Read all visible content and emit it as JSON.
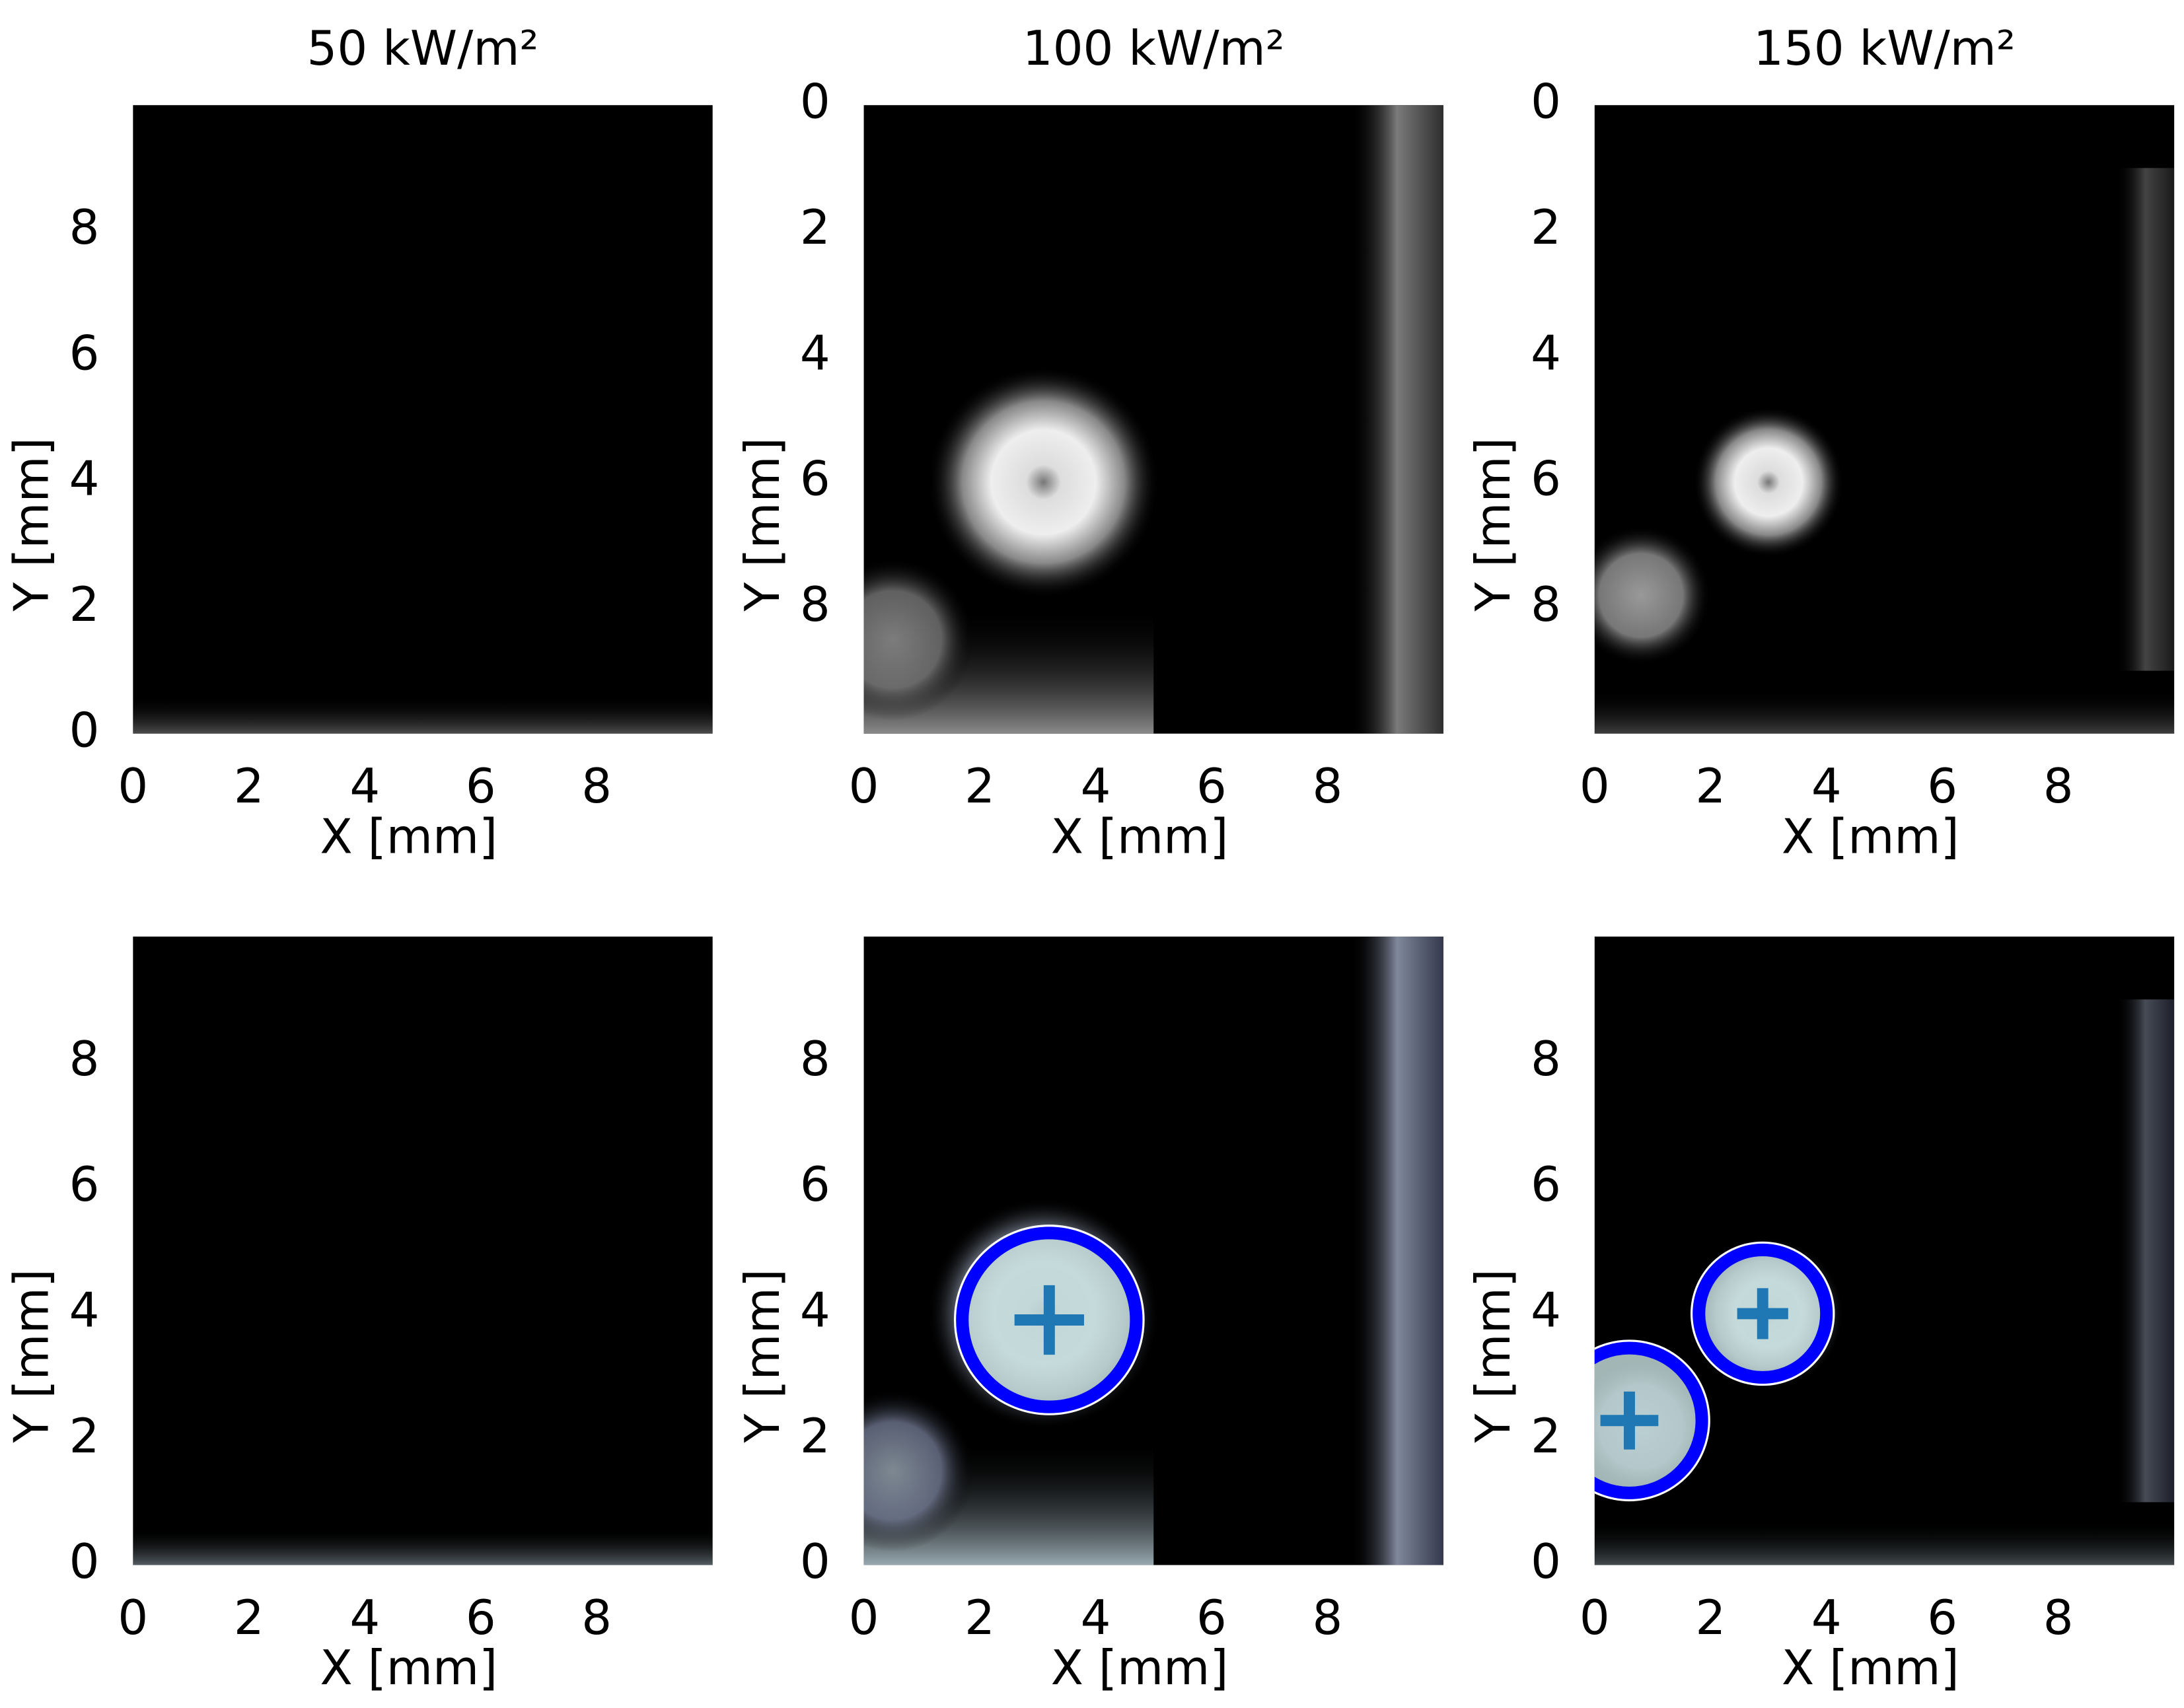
{
  "chart_data": [
    {
      "type": "heatmap",
      "title": "50 kW/m²",
      "xlabel": "X [mm]",
      "ylabel": "Y [mm]",
      "xlim": [
        0,
        10
      ],
      "ylim": [
        0,
        10
      ],
      "xticks": [
        0,
        2,
        4,
        6,
        8
      ],
      "yticks": [
        0,
        2,
        4,
        6,
        8
      ],
      "colormap": "gray"
    },
    {
      "type": "heatmap",
      "title": "100 kW/m²",
      "xlabel": "X [mm]",
      "ylabel": "Y [mm]",
      "xlim": [
        0,
        10
      ],
      "ylim": [
        10,
        0
      ],
      "xticks": [
        0,
        2,
        4,
        6,
        8
      ],
      "yticks": [
        0,
        2,
        4,
        6,
        8
      ],
      "colormap": "gray"
    },
    {
      "type": "heatmap",
      "title": "150 kW/m²",
      "xlabel": "X [mm]",
      "ylabel": "Y [mm]",
      "xlim": [
        0,
        10
      ],
      "ylim": [
        10,
        0
      ],
      "xticks": [
        0,
        2,
        4,
        6,
        8
      ],
      "yticks": [
        0,
        2,
        4,
        6,
        8
      ],
      "colormap": "gray"
    },
    {
      "type": "heatmap",
      "xlabel": "X [mm]",
      "ylabel": "Y [mm]",
      "xlim": [
        0,
        10
      ],
      "ylim": [
        0,
        10
      ],
      "xticks": [
        0,
        2,
        4,
        6,
        8
      ],
      "yticks": [
        0,
        2,
        4,
        6,
        8
      ],
      "colormap": "bone"
    },
    {
      "type": "heatmap",
      "xlabel": "X [mm]",
      "ylabel": "Y [mm]",
      "xlim": [
        0,
        10
      ],
      "ylim": [
        0,
        10
      ],
      "xticks": [
        0,
        2,
        4,
        6,
        8
      ],
      "yticks": [
        0,
        2,
        4,
        6,
        8
      ],
      "colormap": "bone",
      "circles": {
        "x": [
          3.2
        ],
        "y": [
          3.9
        ],
        "r": [
          1.5
        ],
        "color": "#0000ff",
        "marker_color": "#1f77b4"
      }
    },
    {
      "type": "heatmap",
      "xlabel": "X [mm]",
      "ylabel": "Y [mm]",
      "xlim": [
        0,
        10
      ],
      "ylim": [
        0,
        10
      ],
      "xticks": [
        0,
        2,
        4,
        6,
        8
      ],
      "yticks": [
        0,
        2,
        4,
        6,
        8
      ],
      "colormap": "bone",
      "circles": {
        "x": [
          2.9,
          0.6
        ],
        "y": [
          4.0,
          2.3
        ],
        "r": [
          1.1,
          1.25
        ],
        "color": "#0000ff",
        "marker_color": "#1f77b4"
      }
    }
  ]
}
